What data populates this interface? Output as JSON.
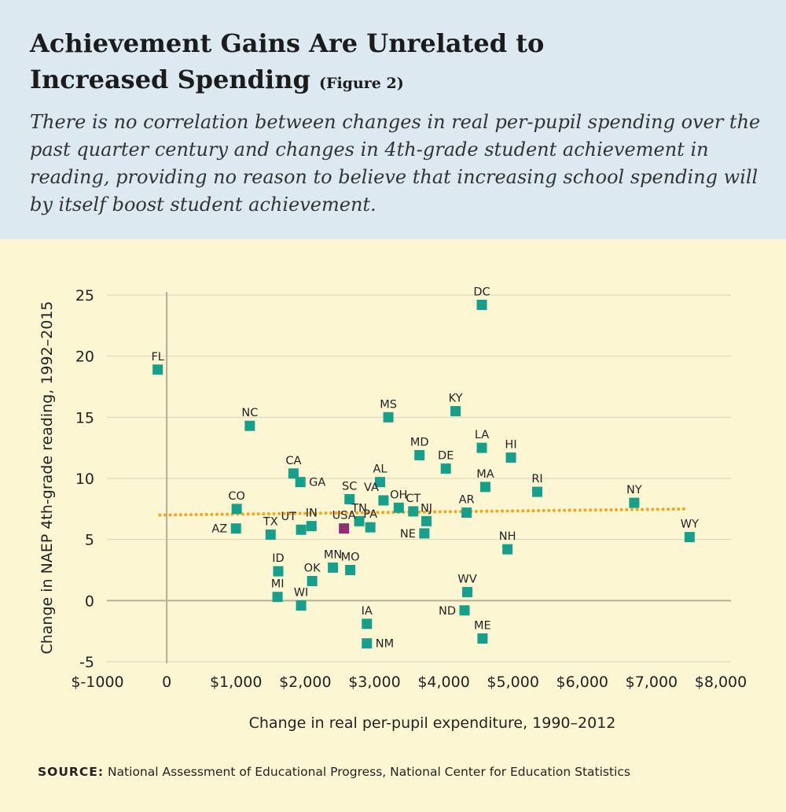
{
  "header": {
    "title_line1": "Achievement Gains Are Unrelated to",
    "title_line2": "Increased Spending",
    "figure_label": "(Figure 2)",
    "subtitle": "There is no correlation between changes in real per-pupil spending over the past quarter century and changes in 4th-grade student achievement in reading, providing no reason to believe that increasing school spending will by itself boost student achievement."
  },
  "source": {
    "label": "SOURCE:",
    "text": "National Assessment of Educational Progress, National Center for Education Statistics"
  },
  "colors": {
    "header_bg": "#dde9f0",
    "plot_bg": "#fdf6d3",
    "marker": "#16a08c",
    "marker_usa": "#8e2f76",
    "trend": "#f0a81c",
    "gridline": "#d9d3bd",
    "axis_zero": "#b4ad98"
  },
  "chart_data": {
    "type": "scatter",
    "xlabel": "Change in real per-pupil expenditure, 1990–2012",
    "ylabel": "Change in NAEP 4th-grade reading, 1992–2015",
    "xlim": [
      -1000,
      8000
    ],
    "ylim": [
      -5,
      25
    ],
    "x_ticks": [
      {
        "value": -1000,
        "label": "$-1000"
      },
      {
        "value": 0,
        "label": "0"
      },
      {
        "value": 1000,
        "label": "$1,000"
      },
      {
        "value": 2000,
        "label": "$2,000"
      },
      {
        "value": 3000,
        "label": "$3,000"
      },
      {
        "value": 4000,
        "label": "$4,000"
      },
      {
        "value": 5000,
        "label": "$5,000"
      },
      {
        "value": 6000,
        "label": "$6,000"
      },
      {
        "value": 7000,
        "label": "$7,000"
      },
      {
        "value": 8000,
        "label": "$8,000"
      }
    ],
    "y_ticks": [
      {
        "value": -5,
        "label": "-5"
      },
      {
        "value": 0,
        "label": "0"
      },
      {
        "value": 5,
        "label": "5"
      },
      {
        "value": 10,
        "label": "10"
      },
      {
        "value": 15,
        "label": "15"
      },
      {
        "value": 20,
        "label": "20"
      },
      {
        "value": 25,
        "label": "25"
      }
    ],
    "grid": "horizontal",
    "trend_line": {
      "x": [
        -100,
        7500
      ],
      "y": [
        7.0,
        7.5
      ]
    },
    "points": [
      {
        "label": "DC",
        "x": 4550,
        "y": 24.2,
        "label_pos": "above"
      },
      {
        "label": "FL",
        "x": -130,
        "y": 18.9,
        "label_pos": "above"
      },
      {
        "label": "KY",
        "x": 4170,
        "y": 15.5,
        "label_pos": "above"
      },
      {
        "label": "MS",
        "x": 3200,
        "y": 15.0,
        "label_pos": "above"
      },
      {
        "label": "NC",
        "x": 1200,
        "y": 14.3,
        "label_pos": "above"
      },
      {
        "label": "LA",
        "x": 4550,
        "y": 12.5,
        "label_pos": "above"
      },
      {
        "label": "MD",
        "x": 3650,
        "y": 11.9,
        "label_pos": "above"
      },
      {
        "label": "HI",
        "x": 4970,
        "y": 11.7,
        "label_pos": "above"
      },
      {
        "label": "DE",
        "x": 4030,
        "y": 10.8,
        "label_pos": "above"
      },
      {
        "label": "CA",
        "x": 1830,
        "y": 10.4,
        "label_pos": "above"
      },
      {
        "label": "GA",
        "x": 1930,
        "y": 9.7,
        "label_pos": "right"
      },
      {
        "label": "AL",
        "x": 3080,
        "y": 9.7,
        "label_pos": "above"
      },
      {
        "label": "MA",
        "x": 4600,
        "y": 9.3,
        "label_pos": "above"
      },
      {
        "label": "RI",
        "x": 5350,
        "y": 8.9,
        "label_pos": "above"
      },
      {
        "label": "SC",
        "x": 2640,
        "y": 8.3,
        "label_pos": "above"
      },
      {
        "label": "VA",
        "x": 3130,
        "y": 8.2,
        "label_pos": "above-left"
      },
      {
        "label": "NY",
        "x": 6750,
        "y": 8.0,
        "label_pos": "above"
      },
      {
        "label": "OH",
        "x": 3350,
        "y": 7.6,
        "label_pos": "above"
      },
      {
        "label": "CO",
        "x": 1010,
        "y": 7.5,
        "label_pos": "above"
      },
      {
        "label": "CT",
        "x": 3560,
        "y": 7.3,
        "label_pos": "above"
      },
      {
        "label": "AR",
        "x": 4330,
        "y": 7.2,
        "label_pos": "above"
      },
      {
        "label": "NJ",
        "x": 3750,
        "y": 6.5,
        "label_pos": "above"
      },
      {
        "label": "TN",
        "x": 2780,
        "y": 6.5,
        "label_pos": "above"
      },
      {
        "label": "PA",
        "x": 2940,
        "y": 6.0,
        "label_pos": "above"
      },
      {
        "label": "IN",
        "x": 2090,
        "y": 6.1,
        "label_pos": "above"
      },
      {
        "label": "AZ",
        "x": 1000,
        "y": 5.9,
        "label_pos": "left"
      },
      {
        "label": "UT",
        "x": 1940,
        "y": 5.8,
        "label_pos": "above-left"
      },
      {
        "label": "USA",
        "x": 2560,
        "y": 5.9,
        "label_pos": "above",
        "highlight": true
      },
      {
        "label": "NE",
        "x": 3720,
        "y": 5.5,
        "label_pos": "left"
      },
      {
        "label": "TX",
        "x": 1500,
        "y": 5.4,
        "label_pos": "above"
      },
      {
        "label": "WY",
        "x": 7550,
        "y": 5.2,
        "label_pos": "above"
      },
      {
        "label": "NH",
        "x": 4920,
        "y": 4.2,
        "label_pos": "above"
      },
      {
        "label": "MN",
        "x": 2400,
        "y": 2.7,
        "label_pos": "above"
      },
      {
        "label": "MO",
        "x": 2650,
        "y": 2.5,
        "label_pos": "above"
      },
      {
        "label": "ID",
        "x": 1610,
        "y": 2.4,
        "label_pos": "above"
      },
      {
        "label": "OK",
        "x": 2100,
        "y": 1.6,
        "label_pos": "above"
      },
      {
        "label": "WV",
        "x": 4340,
        "y": 0.7,
        "label_pos": "above"
      },
      {
        "label": "MI",
        "x": 1600,
        "y": 0.3,
        "label_pos": "above"
      },
      {
        "label": "WI",
        "x": 1940,
        "y": -0.4,
        "label_pos": "above"
      },
      {
        "label": "ND",
        "x": 4300,
        "y": -0.8,
        "label_pos": "left"
      },
      {
        "label": "IA",
        "x": 2890,
        "y": -1.9,
        "label_pos": "above"
      },
      {
        "label": "ME",
        "x": 4560,
        "y": -3.1,
        "label_pos": "above"
      },
      {
        "label": "NM",
        "x": 2890,
        "y": -3.5,
        "label_pos": "right"
      }
    ]
  }
}
